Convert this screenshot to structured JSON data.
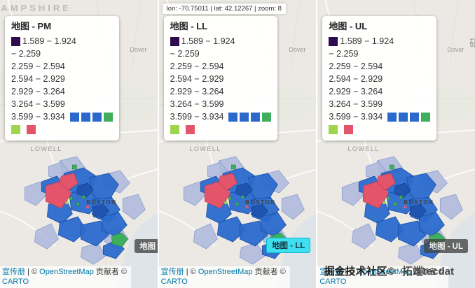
{
  "colors": {
    "map_background": "#ece9e4",
    "legend_purple": "#2e0a4e",
    "choropleth_blue": "#2b6acc",
    "choropleth_light": "#aeb9dd",
    "choropleth_red": "#e4556b",
    "choropleth_green": "#3fae5d",
    "swatch_light_green": "#9fd44e",
    "tooltip_cyan": "#3fdef0",
    "link_blue": "#0078a8"
  },
  "coords_bar": {
    "text": "lon: -70.75011 | lat: 42.12267 | zoom: 8"
  },
  "map_labels": {
    "region": "AMPSHIRE",
    "city_north": "LOWELL",
    "city_main": "BOSTON",
    "town_east": "Dover"
  },
  "legend": {
    "rows": [
      "1.589 − 1.924",
      "− 2.259",
      "2.259 − 2.594",
      "2.594 − 2.929",
      "2.929 − 3.264",
      "3.264 − 3.599",
      "3.599 − 3.934"
    ],
    "first_swatch": "#2e0a4e",
    "trailing_swatches": [
      "#2b6acc",
      "#2b6acc",
      "#2b6acc",
      "#3fae5d"
    ],
    "bottom_swatches": [
      "#9fd44e",
      "#e4556b"
    ]
  },
  "panels": [
    {
      "legend_title": "地图 - PM",
      "tooltip": "地图 - PM"
    },
    {
      "legend_title": "地图 - LL",
      "tooltip": "地图 - LL"
    },
    {
      "legend_title": "地图 - UL",
      "tooltip": "地图 - UL"
    }
  ],
  "attribution": {
    "leaflet_label": "宣传册",
    "separator": "|",
    "copyright": "©",
    "osm_label": "OpenStreetMap",
    "contributors_label": "贡献者",
    "carto_label": "CARTO"
  },
  "watermark": {
    "community": "掘金技术社区©",
    "author": "拓端tecdat",
    "edge_fragment": "研"
  }
}
